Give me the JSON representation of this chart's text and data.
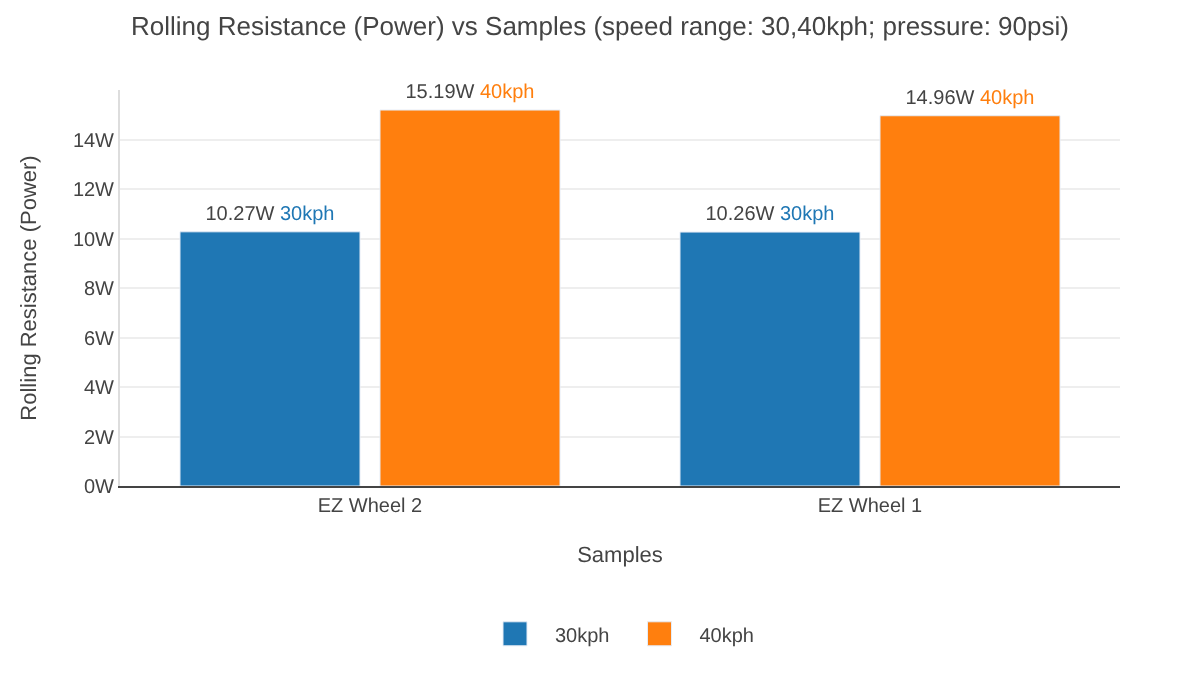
{
  "chart_data": {
    "type": "bar",
    "title": "Rolling Resistance (Power) vs Samples (speed range: 30,40kph; pressure: 90psi)",
    "xlabel": "Samples",
    "ylabel": "Rolling Resistance (Power)",
    "categories": [
      "EZ Wheel 2",
      "EZ Wheel 1"
    ],
    "series": [
      {
        "name": "30kph",
        "color": "#1f77b4",
        "values": [
          10.27,
          10.26
        ],
        "value_labels": [
          "10.27W",
          "10.26W"
        ]
      },
      {
        "name": "40kph",
        "color": "#ff7f0e",
        "values": [
          15.19,
          14.96
        ],
        "value_labels": [
          "15.19W",
          "14.96W"
        ]
      }
    ],
    "ylim": [
      0,
      16
    ],
    "yticks": [
      {
        "value": 0,
        "label": "0W"
      },
      {
        "value": 2,
        "label": "2W"
      },
      {
        "value": 4,
        "label": "4W"
      },
      {
        "value": 6,
        "label": "6W"
      },
      {
        "value": 8,
        "label": "8W"
      },
      {
        "value": 10,
        "label": "10W"
      },
      {
        "value": 12,
        "label": "12W"
      },
      {
        "value": 14,
        "label": "14W"
      }
    ],
    "grid": "y",
    "legend": "bottom"
  }
}
